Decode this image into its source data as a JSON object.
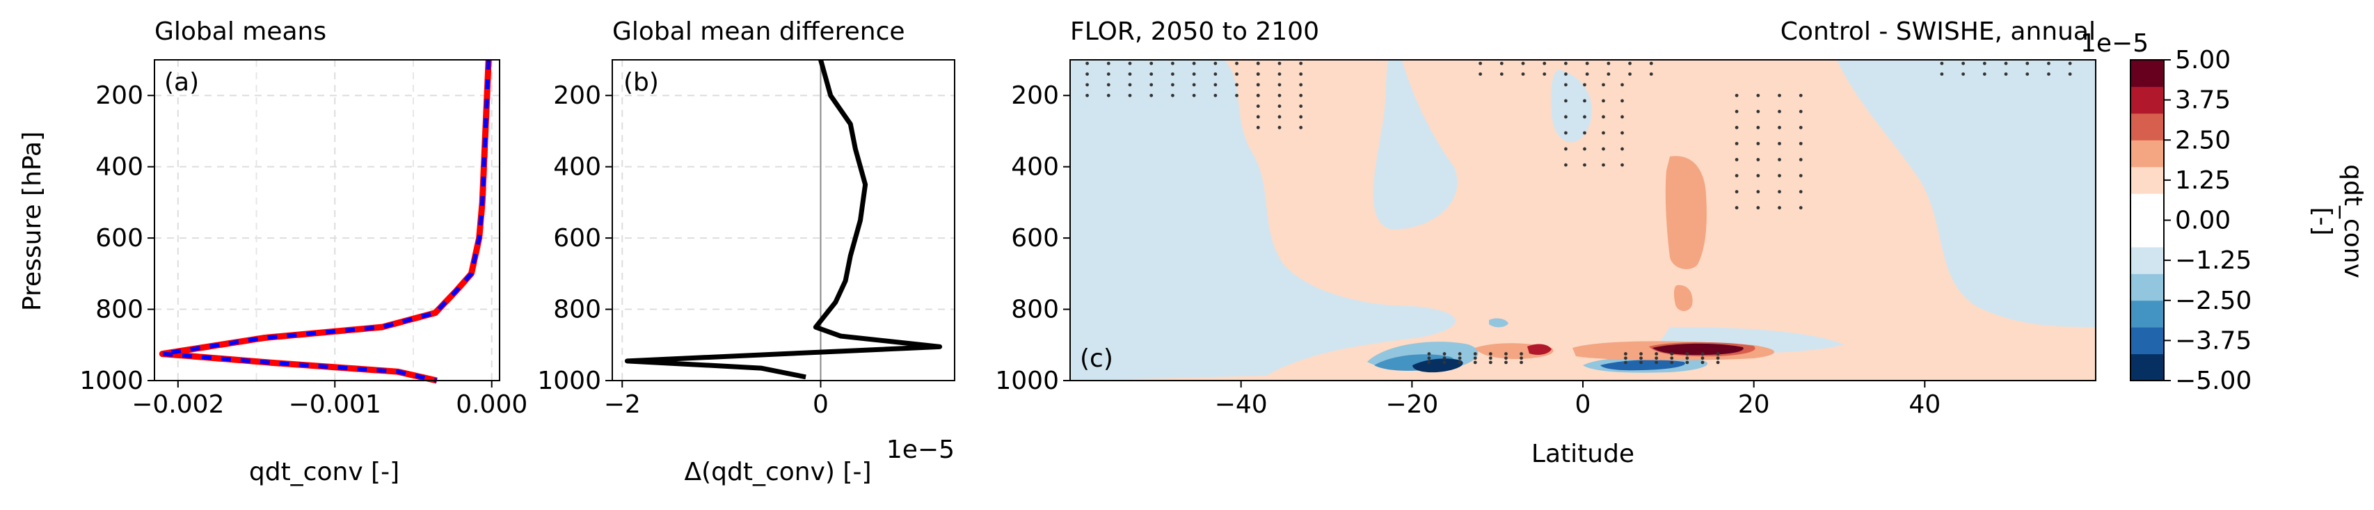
{
  "figure": {
    "panels": {
      "a": {
        "title": "Global means",
        "panel_label": "(a)",
        "ylabel": "Pressure [hPa]",
        "xlabel": "qdt_conv [-]"
      },
      "b": {
        "title": "Global mean difference",
        "panel_label": "(b)",
        "xlabel": "Δ(qdt_conv) [-]",
        "offset_text": "1e−5"
      },
      "c": {
        "title_left": "FLOR, 2050 to 2100",
        "title_right": "Control - SWISHE, annual",
        "panel_label": "(c)",
        "xlabel": "Latitude"
      },
      "colorbar": {
        "label": "qdt_conv\n[-]",
        "offset_text": "1e−5"
      }
    }
  },
  "colors": {
    "control_line": "#ff0000",
    "swishe_line": "#0000ff",
    "diff_line": "#000000",
    "stipple": "#333333"
  },
  "chart_data": [
    {
      "type": "line",
      "panel": "a",
      "title": "Global means",
      "xlabel": "qdt_conv [-]",
      "ylabel": "Pressure [hPa]",
      "xlim": [
        -0.00215,
        5e-05
      ],
      "ylim": [
        1000,
        100
      ],
      "xticks": [
        -0.002,
        -0.001,
        0.0
      ],
      "xtick_labels": [
        "−0.002",
        "−0.001",
        "0.000"
      ],
      "yticks": [
        200,
        400,
        600,
        800,
        1000
      ],
      "ytick_labels": [
        "200",
        "400",
        "600",
        "800",
        "1000"
      ],
      "grid": true,
      "series": [
        {
          "style": "solid",
          "color": "#ff0000",
          "x": [
            -2e-05,
            -3e-05,
            -4e-05,
            -5e-05,
            -6e-05,
            -8e-05,
            -0.00013,
            -0.00023,
            -0.00036,
            -0.0007,
            -0.00145,
            -0.0021,
            -0.0014,
            -0.0006,
            -0.00035
          ],
          "y": [
            100,
            200,
            300,
            400,
            500,
            600,
            700,
            750,
            810,
            850,
            880,
            925,
            950,
            975,
            1000
          ]
        },
        {
          "style": "dashed",
          "color": "#0000ff",
          "x": [
            -2e-05,
            -3e-05,
            -4e-05,
            -5e-05,
            -6e-05,
            -8e-05,
            -0.00013,
            -0.00023,
            -0.00036,
            -0.0007,
            -0.00145,
            -0.0021,
            -0.0014,
            -0.0006,
            -0.00035
          ],
          "y": [
            100,
            200,
            300,
            400,
            500,
            600,
            700,
            750,
            810,
            850,
            880,
            925,
            950,
            975,
            1000
          ]
        }
      ]
    },
    {
      "type": "line",
      "panel": "b",
      "title": "Global mean difference",
      "xlabel": "Δ(qdt_conv) [-]",
      "ylim": [
        1000,
        100
      ],
      "xlim": [
        -2.1,
        1.35
      ],
      "x_scale_note": "1e−5",
      "xticks": [
        -2,
        0
      ],
      "xtick_labels": [
        "−2",
        "0"
      ],
      "yticks": [
        200,
        400,
        600,
        800,
        1000
      ],
      "ytick_labels": [
        "200",
        "400",
        "600",
        "800",
        "1000"
      ],
      "grid": true,
      "zero_line": true,
      "series": [
        {
          "color": "#000000",
          "x": [
            0.0,
            0.05,
            0.1,
            0.3,
            0.35,
            0.45,
            0.4,
            0.3,
            0.25,
            0.15,
            -0.05,
            0.2,
            1.2,
            -1.95,
            -0.6,
            -0.15
          ],
          "y": [
            100,
            150,
            200,
            280,
            350,
            450,
            550,
            650,
            720,
            780,
            850,
            875,
            905,
            945,
            965,
            990
          ]
        }
      ]
    },
    {
      "type": "heatmap",
      "panel": "c",
      "title": "FLOR, 2050 to 2100",
      "title_right": "Control - SWISHE, annual",
      "xlabel": "Latitude",
      "xlim": [
        -60,
        60
      ],
      "ylim": [
        1000,
        100
      ],
      "xticks": [
        -40,
        -20,
        0,
        20,
        40
      ],
      "xtick_labels": [
        "−40",
        "−20",
        "0",
        "20",
        "40"
      ],
      "yticks": [
        200,
        400,
        600,
        800,
        1000
      ],
      "ytick_labels": [
        "200",
        "400",
        "600",
        "800",
        "1000"
      ],
      "levels": [
        -5.0,
        -3.75,
        -2.5,
        -1.25,
        0.0,
        1.25,
        2.5,
        3.75,
        5.0
      ],
      "value_scale": "1e−5",
      "colormap": "RdBu_r",
      "stippling": "significance dots",
      "background_sign": "weak positive except weak negative in the high-latitude southern and northern bands and near-surface regions",
      "features": [
        {
          "kind": "maximum",
          "lat": 12,
          "pressure": 920,
          "value": 5.0
        },
        {
          "kind": "maximum",
          "lat": -7,
          "pressure": 935,
          "value": 3.75
        },
        {
          "kind": "minimum",
          "lat": -13,
          "pressure": 945,
          "value": -5.0
        },
        {
          "kind": "minimum",
          "lat": 8,
          "pressure": 945,
          "value": -5.0
        },
        {
          "kind": "maximum",
          "lat": 14,
          "pressure": 480,
          "value": 2.5
        }
      ]
    },
    {
      "type": "colorbar",
      "label": "qdt_conv\n[-]",
      "offset_text": "1e−5",
      "ticks": [
        5.0,
        3.75,
        2.5,
        1.25,
        0.0,
        -1.25,
        -2.5,
        -3.75,
        -5.0
      ],
      "tick_labels": [
        "5.00",
        "3.75",
        "2.50",
        "1.25",
        "0.00",
        "−1.25",
        "−2.50",
        "−3.75",
        "−5.00"
      ],
      "colors": [
        "#053061",
        "#2166ac",
        "#4393c3",
        "#92c5de",
        "#d1e5f0",
        "#ffffff",
        "#ffffff",
        "#fddbc7",
        "#f4a582",
        "#d6604d",
        "#b2182b",
        "#67001f"
      ]
    }
  ]
}
